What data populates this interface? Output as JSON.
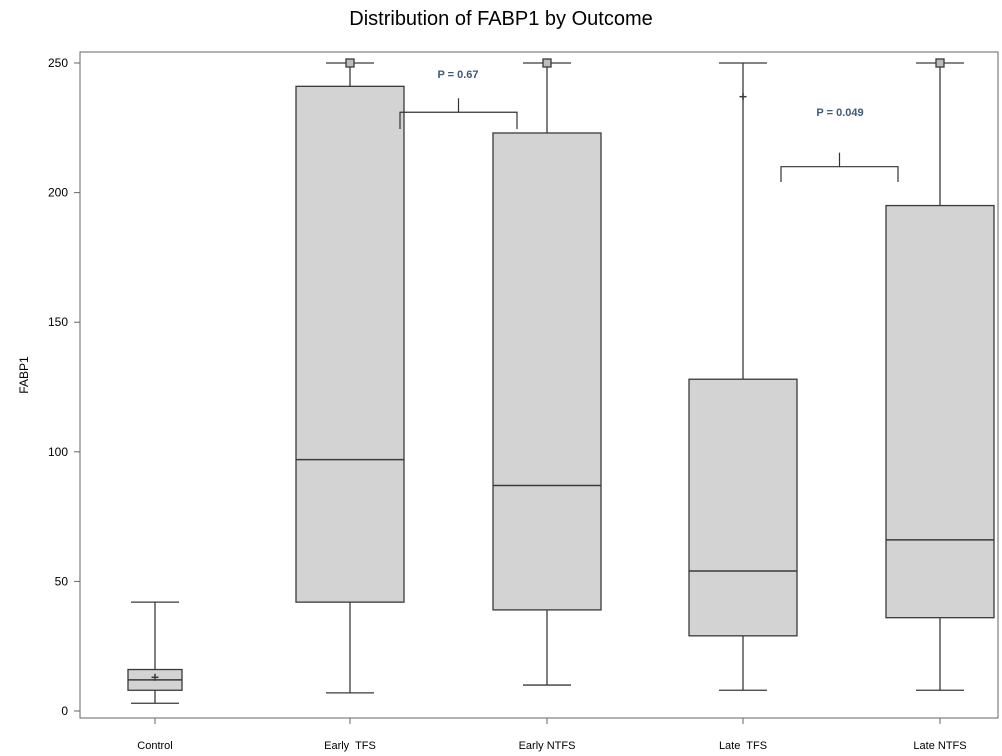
{
  "chart_data": {
    "type": "box",
    "title": "Distribution of FABP1 by Outcome",
    "xlabel": "",
    "ylabel": "FABP1",
    "ylim": [
      0,
      250
    ],
    "yticks": [
      0,
      50,
      100,
      150,
      200,
      250
    ],
    "categories": [
      "Control",
      "Early  TFS",
      "Early NTFS",
      "Late  TFS",
      "Late NTFS"
    ],
    "boxes": [
      {
        "category": "Control",
        "whisker_low": 3,
        "q1": 8,
        "median": 12,
        "q3": 16,
        "whisker_high": 42,
        "mean": 13
      },
      {
        "category": "Early  TFS",
        "whisker_low": 7,
        "q1": 42,
        "median": 97,
        "q3": 241,
        "whisker_high": 250,
        "mean": 250
      },
      {
        "category": "Early NTFS",
        "whisker_low": 10,
        "q1": 39,
        "median": 87,
        "q3": 223,
        "whisker_high": 250,
        "mean": 250
      },
      {
        "category": "Late  TFS",
        "whisker_low": 8,
        "q1": 29,
        "median": 54,
        "q3": 128,
        "whisker_high": 250,
        "mean": 237
      },
      {
        "category": "Late NTFS",
        "whisker_low": 8,
        "q1": 36,
        "median": 66,
        "q3": 195,
        "whisker_high": 250,
        "mean": 250
      }
    ],
    "annotations": [
      {
        "text": "P = 0.67",
        "between": [
          "Early  TFS",
          "Early NTFS"
        ],
        "y": 231
      },
      {
        "text": "P = 0.049",
        "between": [
          "Late  TFS",
          "Late NTFS"
        ],
        "y": 210
      }
    ],
    "grid": false,
    "colors": {
      "box_fill": "#d3d3d3",
      "box_stroke": "#3a3a3a",
      "annotation_text": "#3f5a7a",
      "frame": "#666666"
    }
  }
}
